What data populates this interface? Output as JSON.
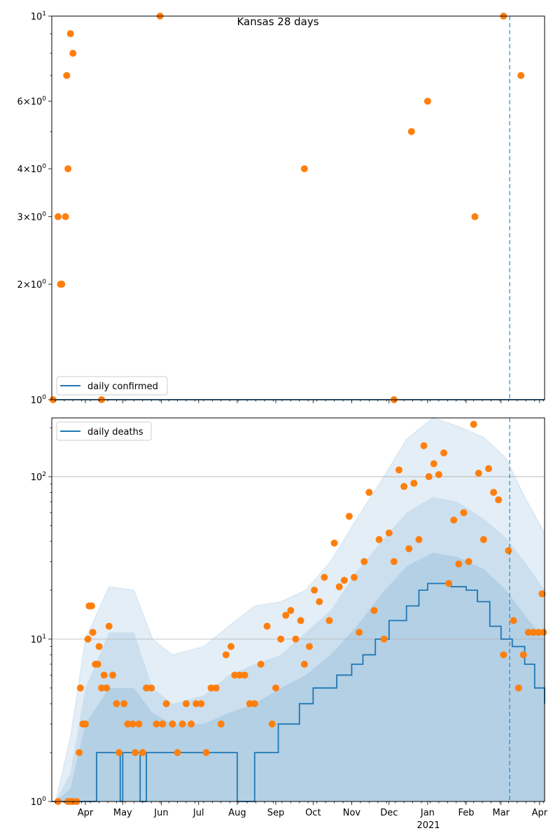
{
  "chart_data": [
    {
      "type": "scatter",
      "title": "Kansas 28 days",
      "xlabel": "",
      "ylabel": "",
      "yscale": "log",
      "ylim": [
        1,
        10
      ],
      "xlim": [
        "2020-03-05",
        "2021-04-05"
      ],
      "grid": false,
      "legend": {
        "placement": "bottom-left",
        "entries": [
          "daily confirmed"
        ]
      },
      "x_tick_labels": [
        "Apr",
        "May",
        "Jun",
        "Jul",
        "Aug",
        "Sep",
        "Oct",
        "Nov",
        "Dec",
        "Jan",
        "Feb",
        "Mar",
        "Apr"
      ],
      "x_year_label": "2021",
      "y_tick_labels": [
        "10^0",
        "2×10^0",
        "3×10^0",
        "4×10^0",
        "6×10^0",
        "10^1"
      ],
      "colors": {
        "line": "#1f77b4",
        "points": "#ff7f0e",
        "band": "#1f77b4",
        "vline": "#1f77b4"
      },
      "vline_date": "2021-03-08",
      "series": [
        {
          "name": "daily confirmed",
          "kind": "line",
          "x": [
            "2020-03-05",
            "2021-04-05"
          ],
          "y": [
            1,
            1
          ]
        },
        {
          "kind": "points",
          "x": [
            "2020-03-06",
            "2020-03-10",
            "2020-03-12",
            "2020-03-13",
            "2020-03-16",
            "2020-03-17",
            "2020-03-18",
            "2020-03-20",
            "2020-03-22",
            "2020-04-14",
            "2020-05-31",
            "2020-09-24",
            "2020-12-05",
            "2020-12-19",
            "2021-01-01",
            "2021-02-08",
            "2021-03-03",
            "2021-03-17"
          ],
          "y": [
            1,
            3,
            2,
            2,
            3,
            7,
            4,
            9,
            8,
            1,
            10,
            4,
            1,
            5,
            6,
            3,
            10,
            7
          ]
        }
      ]
    },
    {
      "type": "scatter",
      "title": "",
      "xlabel": "",
      "ylabel": "",
      "yscale": "log",
      "ylim": [
        1,
        230
      ],
      "xlim": [
        "2020-03-05",
        "2021-04-05"
      ],
      "grid": true,
      "legend": {
        "placement": "top-left",
        "entries": [
          "daily deaths"
        ]
      },
      "x_tick_labels": [
        "Apr",
        "May",
        "Jun",
        "Jul",
        "Aug",
        "Sep",
        "Oct",
        "Nov",
        "Dec",
        "Jan",
        "Feb",
        "Mar",
        "Apr"
      ],
      "x_year_label": "2021",
      "y_tick_labels": [
        "10^1",
        "10^2"
      ],
      "colors": {
        "line": "#1f77b4",
        "points": "#ff7f0e",
        "band": "#1f77b4",
        "vline": "#1f77b4"
      },
      "vline_date": "2021-03-08",
      "series": [
        {
          "name": "daily deaths",
          "kind": "line",
          "x": [
            "2020-03-05",
            "2020-03-20",
            "2020-04-10",
            "2020-04-15",
            "2020-04-20",
            "2020-04-29",
            "2020-05-01",
            "2020-05-08",
            "2020-05-15",
            "2020-05-20",
            "2020-06-01",
            "2020-07-01",
            "2020-07-25",
            "2020-08-01",
            "2020-08-15",
            "2020-08-31",
            "2020-09-03",
            "2020-09-10",
            "2020-09-15",
            "2020-09-20",
            "2020-09-25",
            "2020-10-01",
            "2020-10-10",
            "2020-10-20",
            "2020-11-01",
            "2020-11-10",
            "2020-11-20",
            "2020-12-01",
            "2020-12-15",
            "2020-12-25",
            "2021-01-01",
            "2021-01-10",
            "2021-01-20",
            "2021-02-01",
            "2021-02-10",
            "2021-02-20",
            "2021-03-01",
            "2021-03-10",
            "2021-03-20",
            "2021-03-28",
            "2021-04-05"
          ],
          "y": [
            1,
            1,
            2,
            2,
            2,
            1,
            2,
            2,
            1,
            2,
            2,
            2,
            2,
            1,
            2,
            2,
            3,
            3,
            3,
            4,
            4,
            5,
            5,
            6,
            7,
            8,
            10,
            13,
            16,
            20,
            22,
            22,
            21,
            20,
            17,
            12,
            10,
            9,
            7,
            5,
            4
          ]
        },
        {
          "kind": "points",
          "x": [
            "2020-03-10",
            "2020-03-18",
            "2020-03-20",
            "2020-03-22",
            "2020-03-25",
            "2020-03-27",
            "2020-03-28",
            "2020-03-30",
            "2020-04-01",
            "2020-04-03",
            "2020-04-04",
            "2020-04-06",
            "2020-04-07",
            "2020-04-09",
            "2020-04-11",
            "2020-04-12",
            "2020-04-14",
            "2020-04-16",
            "2020-04-18",
            "2020-04-20",
            "2020-04-23",
            "2020-04-26",
            "2020-04-28",
            "2020-05-02",
            "2020-05-05",
            "2020-05-09",
            "2020-05-11",
            "2020-05-14",
            "2020-05-17",
            "2020-05-20",
            "2020-05-24",
            "2020-05-28",
            "2020-06-02",
            "2020-06-05",
            "2020-06-10",
            "2020-06-14",
            "2020-06-18",
            "2020-06-21",
            "2020-06-25",
            "2020-06-29",
            "2020-07-03",
            "2020-07-07",
            "2020-07-11",
            "2020-07-15",
            "2020-07-19",
            "2020-07-23",
            "2020-07-27",
            "2020-07-30",
            "2020-08-03",
            "2020-08-07",
            "2020-08-11",
            "2020-08-15",
            "2020-08-20",
            "2020-08-25",
            "2020-08-29",
            "2020-09-01",
            "2020-09-05",
            "2020-09-09",
            "2020-09-13",
            "2020-09-17",
            "2020-09-21",
            "2020-09-24",
            "2020-09-28",
            "2020-10-02",
            "2020-10-06",
            "2020-10-10",
            "2020-10-14",
            "2020-10-18",
            "2020-10-22",
            "2020-10-26",
            "2020-10-30",
            "2020-11-03",
            "2020-11-07",
            "2020-11-11",
            "2020-11-15",
            "2020-11-19",
            "2020-11-23",
            "2020-11-27",
            "2020-12-01",
            "2020-12-05",
            "2020-12-09",
            "2020-12-13",
            "2020-12-17",
            "2020-12-21",
            "2020-12-25",
            "2020-12-29",
            "2021-01-02",
            "2021-01-06",
            "2021-01-10",
            "2021-01-14",
            "2021-01-18",
            "2021-01-22",
            "2021-01-26",
            "2021-01-30",
            "2021-02-03",
            "2021-02-07",
            "2021-02-11",
            "2021-02-15",
            "2021-02-19",
            "2021-02-23",
            "2021-02-27",
            "2021-03-03",
            "2021-03-07",
            "2021-03-11",
            "2021-03-15",
            "2021-03-19",
            "2021-03-23",
            "2021-03-27",
            "2021-03-31",
            "2021-04-03",
            "2021-04-04"
          ],
          "y": [
            1,
            1,
            1,
            1,
            1,
            2,
            5,
            3,
            3,
            10,
            16,
            16,
            11,
            7,
            7,
            9,
            5,
            6,
            5,
            12,
            6,
            4,
            2,
            4,
            3,
            3,
            2,
            3,
            2,
            5,
            5,
            3,
            3,
            4,
            3,
            2,
            3,
            4,
            3,
            4,
            4,
            2,
            5,
            5,
            3,
            8,
            9,
            6,
            6,
            6,
            4,
            4,
            7,
            12,
            3,
            5,
            10,
            14,
            15,
            10,
            13,
            7,
            9,
            20,
            17,
            24,
            13,
            39,
            21,
            23,
            57,
            24,
            11,
            30,
            80,
            15,
            41,
            10,
            45,
            30,
            110,
            87,
            36,
            91,
            41,
            155,
            100,
            120,
            103,
            140,
            22,
            54,
            29,
            60,
            30,
            210,
            105,
            41,
            112,
            80,
            72,
            8,
            35,
            13,
            5,
            8,
            11,
            11,
            11,
            19,
            11
          ]
        },
        {
          "kind": "band",
          "label": "uncertainty bands (light / mid / dark)",
          "x": [
            "2020-03-08",
            "2020-03-20",
            "2020-04-01",
            "2020-04-20",
            "2020-05-10",
            "2020-05-25",
            "2020-06-10",
            "2020-07-05",
            "2020-07-25",
            "2020-08-15",
            "2020-09-05",
            "2020-09-25",
            "2020-10-15",
            "2020-11-05",
            "2020-11-25",
            "2020-12-15",
            "2021-01-05",
            "2021-01-25",
            "2021-02-15",
            "2021-03-05",
            "2021-03-20",
            "2021-04-05"
          ],
          "upper_outer": [
            1,
            2.5,
            10,
            21,
            20,
            10,
            8,
            9,
            12,
            16,
            17,
            20,
            30,
            55,
            95,
            170,
            230,
            205,
            175,
            130,
            75,
            45
          ],
          "lower_outer": [
            1,
            1,
            1,
            1,
            1,
            1,
            1,
            1,
            1,
            1,
            1,
            1,
            1,
            1,
            1,
            1,
            1,
            1,
            1,
            1,
            1,
            1
          ],
          "upper_mid": [
            1,
            1.5,
            5,
            11,
            11,
            5,
            4,
            4.5,
            6,
            7,
            8,
            11,
            15,
            26,
            40,
            60,
            75,
            70,
            55,
            42,
            30,
            20
          ],
          "upper_inner": [
            1,
            1.2,
            3,
            5,
            5,
            3.5,
            3,
            3,
            3.5,
            4,
            5,
            6,
            8,
            12,
            19,
            28,
            34,
            32,
            27,
            20,
            14,
            10
          ]
        }
      ]
    }
  ]
}
